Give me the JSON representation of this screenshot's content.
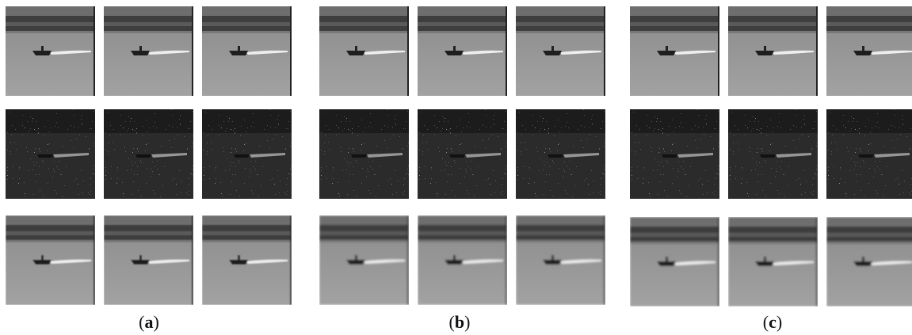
{
  "panels": [
    {
      "label_parts": [
        "(",
        "a",
        ")"
      ]
    },
    {
      "label_parts": [
        "(",
        "b",
        ")"
      ]
    },
    {
      "label_parts": [
        "(",
        "c",
        ")"
      ]
    }
  ]
}
